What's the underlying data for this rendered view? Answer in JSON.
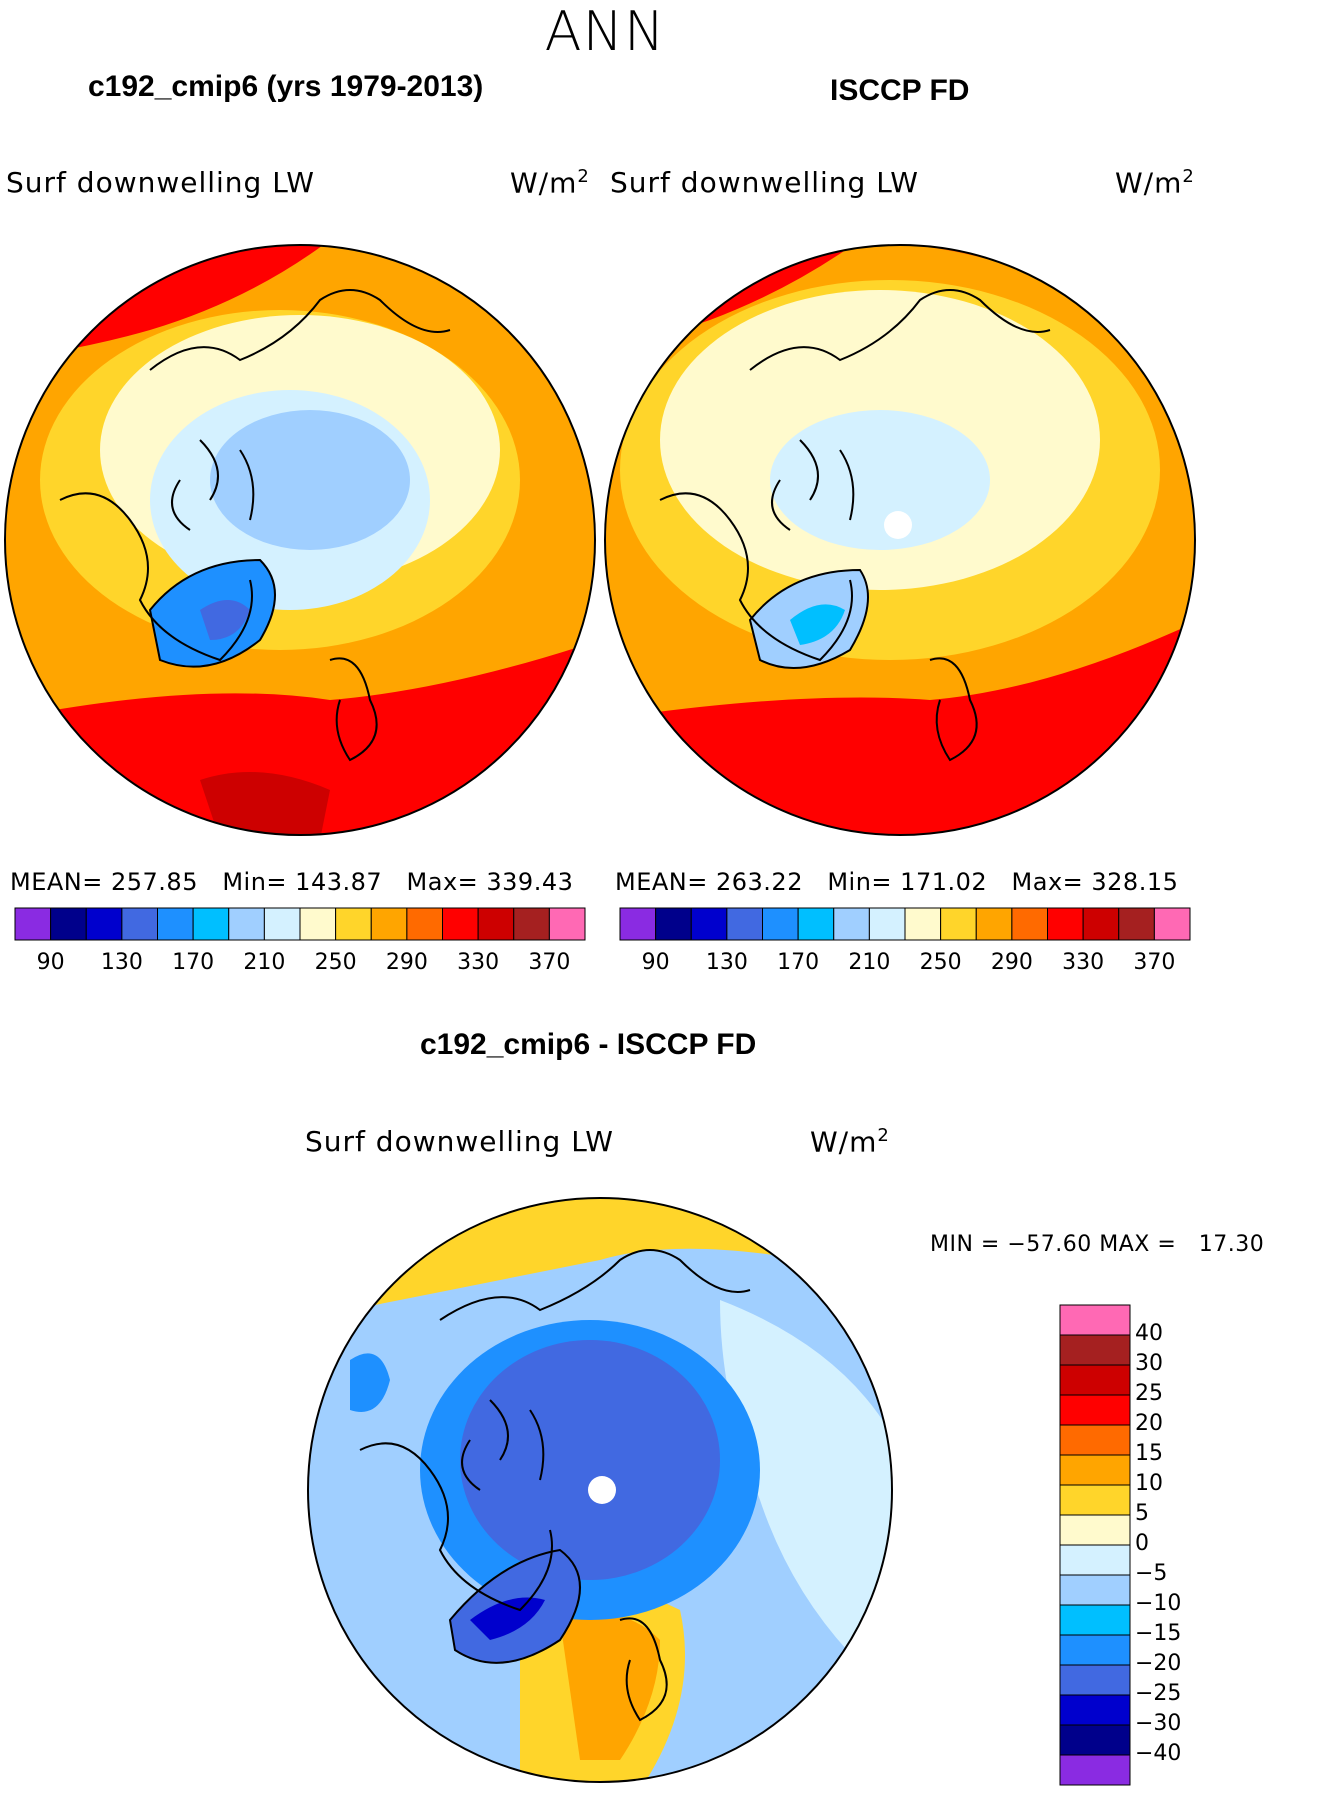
{
  "season": "ANN",
  "panels": [
    {
      "title": "c192_cmip6 (yrs 1979-2013)",
      "variable": "Surf downwelling LW",
      "units": "W/m",
      "units_exp": "2",
      "stats": "MEAN= 257.85   Min= 143.87   Max= 339.43"
    },
    {
      "title": "ISCCP FD",
      "variable": "Surf downwelling LW",
      "units": "W/m",
      "units_exp": "2",
      "stats": "MEAN= 263.22   Min= 171.02   Max= 328.15"
    }
  ],
  "diff": {
    "title": "c192_cmip6 - ISCCP FD",
    "variable": "Surf downwelling LW",
    "units": "W/m",
    "units_exp": "2",
    "minmax": "MIN = −57.60 MAX =   17.30"
  },
  "colors": {
    "abs_scale": [
      "#8a2be2",
      "#00008b",
      "#0000cd",
      "#4169e1",
      "#1e90ff",
      "#00bfff",
      "#a0cfff",
      "#d4f1ff",
      "#fffacd",
      "#ffd52a",
      "#ffa500",
      "#ff6a00",
      "#ff0000",
      "#cd0000",
      "#a52020",
      "#ff69b4"
    ],
    "diff_scale": [
      "#8a2be2",
      "#00008b",
      "#0000cd",
      "#4169e1",
      "#1e90ff",
      "#00bfff",
      "#a0cfff",
      "#d4f1ff",
      "#fffacd",
      "#ffd52a",
      "#ffa500",
      "#ff6a00",
      "#ff0000",
      "#cd0000",
      "#a52020",
      "#ff69b4"
    ]
  },
  "chart_data": [
    {
      "type": "heatmap",
      "projection": "north polar stereographic",
      "title": "c192_cmip6 (yrs 1979-2013)",
      "variable": "Surf downwelling LW",
      "units": "W/m2",
      "mean": 257.85,
      "min": 143.87,
      "max": 339.43,
      "colorbar_ticks": [
        "90",
        "130",
        "170",
        "210",
        "250",
        "290",
        "330",
        "370"
      ]
    },
    {
      "type": "heatmap",
      "projection": "north polar stereographic",
      "title": "ISCCP FD",
      "variable": "Surf downwelling LW",
      "units": "W/m2",
      "mean": 263.22,
      "min": 171.02,
      "max": 328.15,
      "colorbar_ticks": [
        "90",
        "130",
        "170",
        "210",
        "250",
        "290",
        "330",
        "370"
      ]
    },
    {
      "type": "heatmap",
      "projection": "north polar stereographic",
      "title": "c192_cmip6 - ISCCP FD",
      "variable": "Surf downwelling LW",
      "units": "W/m2",
      "min": -57.6,
      "max": 17.3,
      "colorbar_ticks": [
        "40",
        "30",
        "25",
        "20",
        "15",
        "10",
        "5",
        "0",
        "−5",
        "−10",
        "−15",
        "−20",
        "−25",
        "−30",
        "−40"
      ]
    }
  ]
}
